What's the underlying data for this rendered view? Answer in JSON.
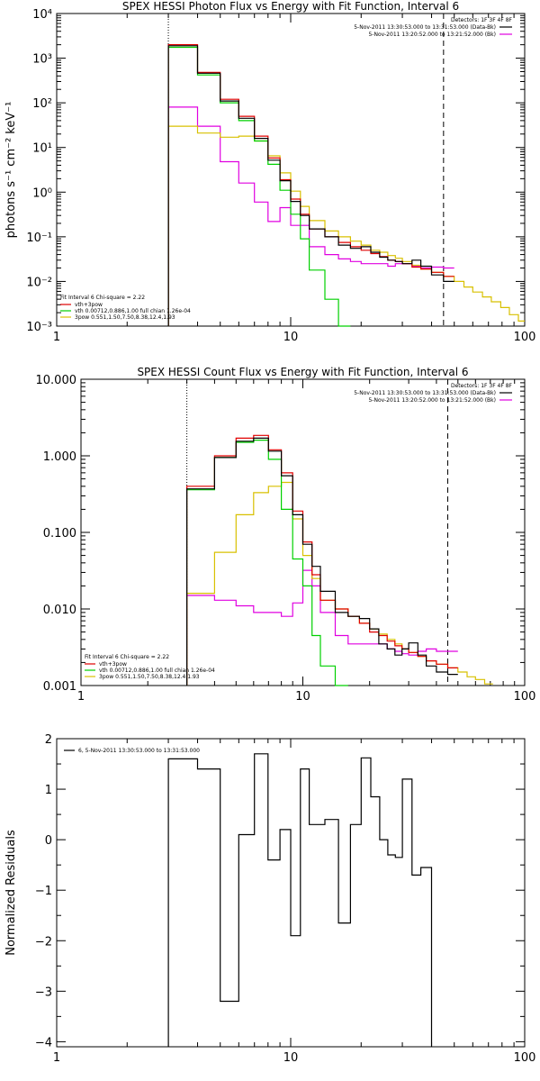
{
  "chart_data": [
    {
      "type": "line",
      "title": "SPEX HESSI Photon Flux vs Energy with Fit Function, Interval 6",
      "xlabel": "",
      "ylabel": "photons s⁻¹ cm⁻² keV⁻¹",
      "xscale": "log",
      "yscale": "log",
      "xlim": [
        1,
        100
      ],
      "ylim": [
        0.001,
        10000
      ],
      "x_ticks": [
        "1",
        "10",
        "100"
      ],
      "y_ticks": [
        "10⁻³",
        "10⁻²",
        "10⁻¹",
        "10⁰",
        "10¹",
        "10²",
        "10³",
        "10⁴"
      ],
      "vlines": [
        {
          "x": 3,
          "style": "dotted"
        },
        {
          "x": 45,
          "style": "dashed"
        }
      ],
      "legend_top_right": {
        "title": "Detectors: 1F 3F 4F 8F",
        "entries": [
          {
            "text": "5-Nov-2011 13:30:53.000 to 13:31:53.000 (Data-Bk)",
            "color": "#000000"
          },
          {
            "text": "5-Nov-2011 13:20:52.000 to 13:21:52.000 (Bk)",
            "color": "#e000e0"
          }
        ]
      },
      "legend_bottom_left": {
        "title": "Fit Interval 6   Chi-square = 2.22",
        "entries": [
          {
            "text": "vth+3pow",
            "color": "#e00000"
          },
          {
            "text": "vth 0.00712,0.886,1.00  full chian 1.26e-04",
            "color": "#00d000"
          },
          {
            "text": "3pow 0.551,1.50,7.50,8.38,12.4,1.93",
            "color": "#d8c000"
          }
        ]
      },
      "edges": [
        3,
        4,
        5,
        6,
        7,
        8,
        9,
        10,
        11,
        12,
        14,
        16,
        18,
        20,
        22,
        24,
        26,
        28,
        30,
        33,
        36,
        40,
        45,
        50,
        55,
        60,
        66,
        72,
        79,
        86,
        94,
        100
      ],
      "series": [
        {
          "name": "Data-Bk",
          "color": "#000000",
          "values": [
            1900,
            460,
            110,
            45,
            16,
            5.2,
            1.8,
            0.62,
            0.3,
            0.15,
            0.1,
            0.065,
            0.055,
            0.06,
            0.045,
            0.035,
            0.03,
            0.028,
            0.025,
            0.03,
            0.022,
            0.014,
            0.01
          ]
        },
        {
          "name": "Bk",
          "color": "#e000e0",
          "values": [
            80,
            30,
            4.8,
            1.6,
            0.6,
            0.22,
            0.45,
            0.18,
            0.18,
            0.06,
            0.04,
            0.032,
            0.028,
            0.025,
            0.025,
            0.025,
            0.022,
            0.025,
            0.025,
            0.022,
            0.02,
            0.021,
            0.02
          ]
        },
        {
          "name": "vth+3pow",
          "color": "#e00000",
          "values": [
            2000,
            480,
            120,
            50,
            18,
            5.8,
            1.9,
            0.7,
            0.32,
            0.15,
            0.1,
            0.075,
            0.06,
            0.05,
            0.042,
            0.036,
            0.03,
            0.028,
            0.025,
            0.021,
            0.019,
            0.016,
            0.013
          ]
        },
        {
          "name": "vth",
          "color": "#00d000",
          "values": [
            1750,
            420,
            100,
            40,
            14,
            4.2,
            1.1,
            0.32,
            0.09,
            0.018,
            0.004,
            0.001
          ]
        },
        {
          "name": "3pow",
          "color": "#d8c000",
          "values": [
            30,
            21,
            17,
            18,
            14,
            6.5,
            2.7,
            1.05,
            0.48,
            0.23,
            0.135,
            0.1,
            0.08,
            0.065,
            0.05,
            0.045,
            0.038,
            0.033,
            0.028,
            0.023,
            0.019,
            0.016,
            0.013,
            0.01,
            0.0075,
            0.0058,
            0.0045,
            0.0035,
            0.0026,
            0.0018,
            0.0013
          ]
        }
      ]
    },
    {
      "type": "line",
      "title": "SPEX HESSI Count Flux vs Energy with Fit Function, Interval 6",
      "xlabel": "",
      "ylabel": "",
      "xscale": "log",
      "yscale": "log",
      "xlim": [
        1,
        100
      ],
      "ylim": [
        0.001,
        10
      ],
      "x_ticks": [
        "1",
        "10",
        "100"
      ],
      "y_ticks": [
        "0.001",
        "0.010",
        "0.100",
        "1.000",
        "10.000"
      ],
      "vlines": [
        {
          "x": 3,
          "style": "dotted"
        },
        {
          "x": 45,
          "style": "dashed"
        }
      ],
      "legend_top_right": {
        "title": "Detectors: 1F 3F 4F 8F",
        "entries": [
          {
            "text": "5-Nov-2011 13:30:53.000 to 13:31:53.000 (Data-Bk)",
            "color": "#000000"
          },
          {
            "text": "5-Nov-2011 13:20:52.000 to 13:21:52.000 (Bk)",
            "color": "#e000e0"
          }
        ]
      },
      "legend_bottom_left": {
        "title": "Fit Interval 6   Chi-square = 2.22",
        "entries": [
          {
            "text": "vth+3pow",
            "color": "#e00000"
          },
          {
            "text": "vth 0.00712,0.886,1.00  full chian 1.26e-04",
            "color": "#00d000"
          },
          {
            "text": "3pow 0.551,1.50,7.50,8.38,12.4,1.93",
            "color": "#d8c000"
          }
        ]
      },
      "edges": [
        3,
        4,
        5,
        6,
        7,
        8,
        9,
        10,
        11,
        12,
        14,
        16,
        18,
        20,
        22,
        24,
        26,
        28,
        30,
        33,
        36,
        40,
        45,
        50,
        55,
        60,
        66,
        72,
        79,
        86,
        94,
        100
      ],
      "series": [
        {
          "name": "Data-Bk",
          "color": "#000000",
          "values": [
            0.37,
            0.95,
            1.55,
            1.7,
            1.15,
            0.55,
            0.17,
            0.07,
            0.036,
            0.017,
            0.009,
            0.008,
            0.0075,
            0.0055,
            0.0035,
            0.003,
            0.0025,
            0.003,
            0.0036,
            0.0025,
            0.0018,
            0.0015,
            0.0014
          ]
        },
        {
          "name": "Bk",
          "color": "#e000e0",
          "values": [
            0.015,
            0.013,
            0.011,
            0.009,
            0.009,
            0.008,
            0.012,
            0.032,
            0.02,
            0.009,
            0.0045,
            0.0035,
            0.0035,
            0.0035,
            0.0035,
            0.003,
            0.0028,
            0.0026,
            0.0025,
            0.0028,
            0.003,
            0.0028,
            0.0028
          ]
        },
        {
          "name": "vth+3pow",
          "color": "#e00000",
          "values": [
            0.4,
            1.0,
            1.7,
            1.85,
            1.2,
            0.6,
            0.19,
            0.075,
            0.028,
            0.013,
            0.01,
            0.008,
            0.0065,
            0.005,
            0.0045,
            0.0038,
            0.0033,
            0.003,
            0.0027,
            0.0024,
            0.0021,
            0.0019,
            0.0017
          ]
        },
        {
          "name": "vth",
          "color": "#00d000",
          "values": [
            0.36,
            0.95,
            1.5,
            1.6,
            0.9,
            0.2,
            0.045,
            0.02,
            0.0045,
            0.0018,
            0.001
          ]
        },
        {
          "name": "3pow",
          "color": "#d8c000",
          "values": [
            0.016,
            0.055,
            0.17,
            0.33,
            0.4,
            0.45,
            0.15,
            0.05,
            0.025,
            0.013,
            0.01,
            0.008,
            0.0065,
            0.0055,
            0.0047,
            0.004,
            0.0035,
            0.003,
            0.0027,
            0.0024,
            0.0021,
            0.0019,
            0.0017,
            0.0015,
            0.0013,
            0.0012,
            0.00105
          ]
        }
      ]
    },
    {
      "type": "line",
      "title": "",
      "xlabel": "",
      "ylabel": "Normalized Residuals",
      "xscale": "log",
      "yscale": "linear",
      "xlim": [
        1,
        100
      ],
      "ylim": [
        -4.1,
        2
      ],
      "x_ticks": [
        "1",
        "10",
        "100"
      ],
      "y_ticks": [
        "−4",
        "−3",
        "−2",
        "−1",
        "0",
        "1",
        "2"
      ],
      "legend_top_left": {
        "entries": [
          {
            "text": "6, 5-Nov-2011 13:30:53.000 to 13:31:53.000",
            "color": "#000000"
          }
        ]
      },
      "edges": [
        3,
        4,
        5,
        6,
        7,
        8,
        9,
        10,
        11,
        12,
        14,
        16,
        18,
        20,
        22,
        24,
        26,
        28,
        30,
        33,
        36,
        40,
        45
      ],
      "series": [
        {
          "name": "",
          "color": "#000000",
          "values": [
            1.6,
            1.4,
            -3.2,
            0.1,
            1.7,
            -0.4,
            0.2,
            -1.9,
            1.4,
            0.3,
            0.4,
            -1.65,
            0.3,
            1.62,
            0.85,
            0.0,
            -0.3,
            -0.35,
            1.2,
            -0.7,
            -0.55
          ]
        }
      ]
    }
  ]
}
